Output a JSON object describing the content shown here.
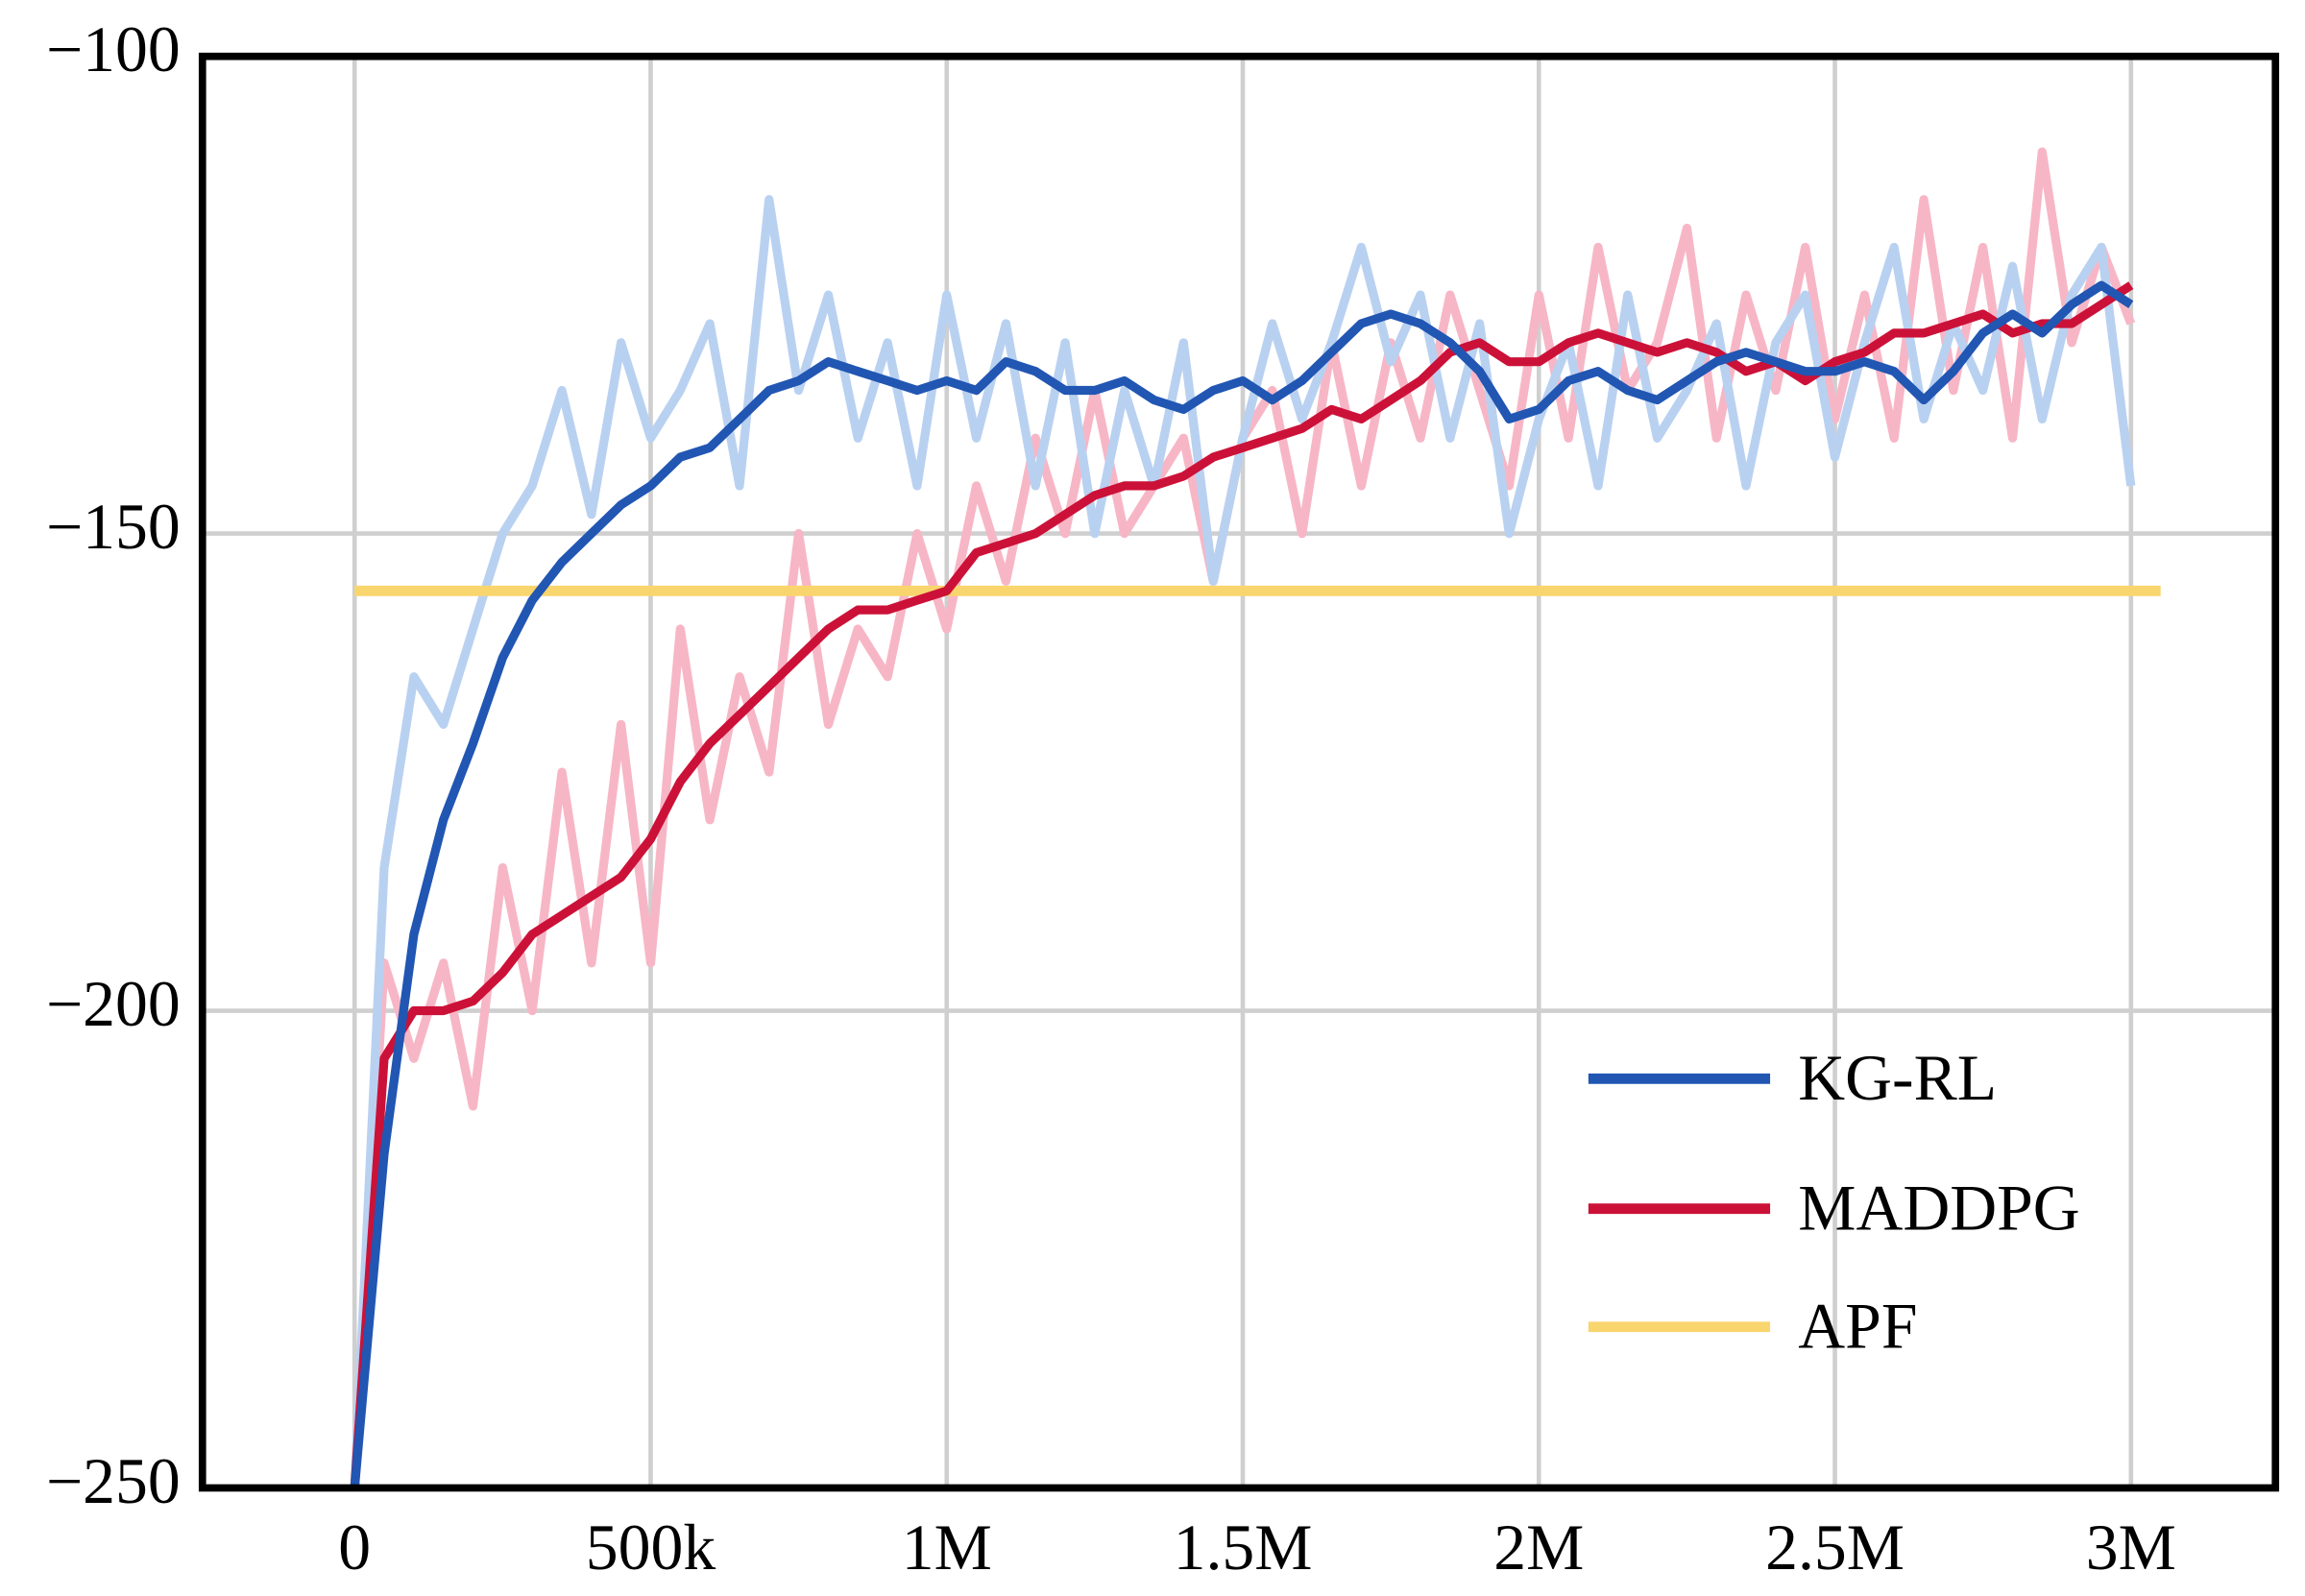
{
  "chart_data": {
    "type": "line",
    "x": [
      0,
      50000,
      100000,
      150000,
      200000,
      250000,
      300000,
      350000,
      400000,
      450000,
      500000,
      550000,
      600000,
      650000,
      700000,
      750000,
      800000,
      850000,
      900000,
      950000,
      1000000,
      1050000,
      1100000,
      1150000,
      1200000,
      1250000,
      1300000,
      1350000,
      1400000,
      1450000,
      1500000,
      1550000,
      1600000,
      1650000,
      1700000,
      1750000,
      1800000,
      1850000,
      1900000,
      1950000,
      2000000,
      2050000,
      2100000,
      2150000,
      2200000,
      2250000,
      2300000,
      2350000,
      2400000,
      2450000,
      2500000,
      2550000,
      2600000,
      2650000,
      2700000,
      2750000,
      2800000,
      2850000,
      2900000,
      2950000,
      3000000
    ],
    "series": [
      {
        "name": "KG-RL",
        "color": "#2156b3",
        "raw_color": "#b9d1f1",
        "values": [
          -250,
          -215,
          -192,
          -180,
          -172,
          -163,
          -157,
          -153,
          -150,
          -147,
          -145,
          -142,
          -141,
          -138,
          -135,
          -134,
          -132,
          -133,
          -134,
          -135,
          -134,
          -135,
          -132,
          -133,
          -135,
          -135,
          -134,
          -136,
          -137,
          -135,
          -134,
          -136,
          -134,
          -131,
          -128,
          -127,
          -128,
          -130,
          -133,
          -138,
          -137,
          -134,
          -133,
          -135,
          -136,
          -134,
          -132,
          -131,
          -132,
          -133,
          -133,
          -132,
          -133,
          -136,
          -133,
          -129,
          -127,
          -129,
          -126,
          -124,
          -126
        ],
        "raw_values": [
          -250,
          -185,
          -165,
          -170,
          -160,
          -150,
          -145,
          -135,
          -148,
          -130,
          -140,
          -135,
          -128,
          -145,
          -115,
          -135,
          -125,
          -140,
          -130,
          -145,
          -125,
          -140,
          -128,
          -145,
          -130,
          -150,
          -135,
          -145,
          -130,
          -155,
          -140,
          -128,
          -138,
          -130,
          -120,
          -132,
          -125,
          -140,
          -128,
          -150,
          -138,
          -130,
          -145,
          -125,
          -140,
          -135,
          -128,
          -145,
          -130,
          -125,
          -142,
          -130,
          -120,
          -138,
          -128,
          -135,
          -122,
          -138,
          -125,
          -120,
          -145
        ]
      },
      {
        "name": "MADDPG",
        "color": "#cc1138",
        "raw_color": "#f7b6c6",
        "values": [
          -250,
          -205,
          -200,
          -200,
          -199,
          -196,
          -192,
          -190,
          -188,
          -186,
          -182,
          -176,
          -172,
          -169,
          -166,
          -163,
          -160,
          -158,
          -158,
          -157,
          -156,
          -152,
          -151,
          -150,
          -148,
          -146,
          -145,
          -145,
          -144,
          -142,
          -141,
          -140,
          -139,
          -137,
          -138,
          -136,
          -134,
          -131,
          -130,
          -132,
          -132,
          -130,
          -129,
          -130,
          -131,
          -130,
          -131,
          -133,
          -132,
          -134,
          -132,
          -131,
          -129,
          -129,
          -128,
          -127,
          -129,
          -128,
          -128,
          -126,
          -124
        ],
        "raw_values": [
          -250,
          -195,
          -205,
          -195,
          -210,
          -185,
          -200,
          -175,
          -195,
          -170,
          -195,
          -160,
          -180,
          -165,
          -175,
          -150,
          -170,
          -160,
          -165,
          -150,
          -160,
          -145,
          -155,
          -140,
          -150,
          -135,
          -150,
          -145,
          -140,
          -155,
          -140,
          -135,
          -150,
          -130,
          -145,
          -130,
          -140,
          -125,
          -135,
          -145,
          -125,
          -140,
          -120,
          -135,
          -130,
          -118,
          -140,
          -125,
          -135,
          -120,
          -138,
          -125,
          -140,
          -115,
          -135,
          -120,
          -140,
          -110,
          -130,
          -120,
          -128
        ]
      },
      {
        "name": "APF",
        "color": "#f9d56e",
        "x": [
          0,
          3050000
        ],
        "values": [
          -156,
          -156
        ]
      }
    ],
    "xlim": [
      -257000,
      3244000
    ],
    "ylim": [
      -250,
      -100
    ],
    "xticks": [
      0,
      {
        "value": 500000,
        "label": "500k"
      },
      {
        "value": 1000000,
        "label": "1M"
      },
      {
        "value": 1500000,
        "label": "1.5M"
      },
      {
        "value": 2000000,
        "label": "2M"
      },
      {
        "value": 2500000,
        "label": "2.5M"
      },
      {
        "value": 3000000,
        "label": "3M"
      }
    ],
    "yticks": [
      {
        "value": -100,
        "label": "−100"
      },
      {
        "value": -150,
        "label": "−150"
      },
      {
        "value": -200,
        "label": "−200"
      },
      {
        "value": -250,
        "label": "−250"
      }
    ],
    "grid": true,
    "legend": "lower right"
  }
}
